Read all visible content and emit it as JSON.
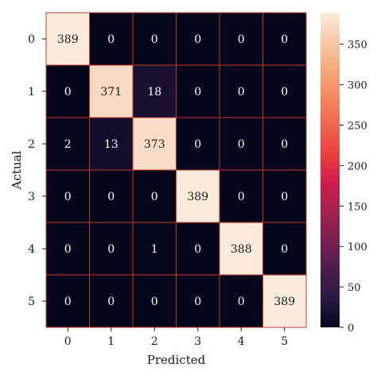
{
  "chart_data": {
    "type": "heatmap",
    "xlabel": "Predicted",
    "ylabel": "Actual",
    "x_categories": [
      "0",
      "1",
      "2",
      "3",
      "4",
      "5"
    ],
    "y_categories": [
      "0",
      "1",
      "2",
      "3",
      "4",
      "5"
    ],
    "values": [
      [
        389,
        0,
        0,
        0,
        0,
        0
      ],
      [
        0,
        371,
        18,
        0,
        0,
        0
      ],
      [
        2,
        13,
        373,
        0,
        0,
        0
      ],
      [
        0,
        0,
        0,
        389,
        0,
        0
      ],
      [
        0,
        0,
        1,
        0,
        388,
        0
      ],
      [
        0,
        0,
        0,
        0,
        0,
        389
      ]
    ],
    "colorbar": {
      "min": 0,
      "max": 389,
      "ticks": [
        0,
        50,
        100,
        150,
        200,
        250,
        300,
        350
      ]
    },
    "colormap": [
      "#03051a",
      "#2a1a45",
      "#4c1d4b",
      "#7a1f52",
      "#a1234d",
      "#cb1b4f",
      "#e83f3f",
      "#f0624e",
      "#f4875c",
      "#f6a97a",
      "#f7c9a8",
      "#faebdd"
    ],
    "cell_border_color": "#c0392b"
  }
}
